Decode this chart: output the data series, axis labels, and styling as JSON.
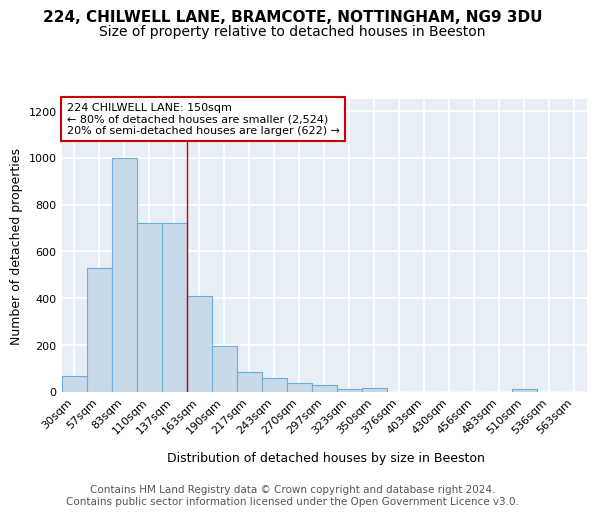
{
  "title_line1": "224, CHILWELL LANE, BRAMCOTE, NOTTINGHAM, NG9 3DU",
  "title_line2": "Size of property relative to detached houses in Beeston",
  "xlabel": "Distribution of detached houses by size in Beeston",
  "ylabel": "Number of detached properties",
  "categories": [
    "30sqm",
    "57sqm",
    "83sqm",
    "110sqm",
    "137sqm",
    "163sqm",
    "190sqm",
    "217sqm",
    "243sqm",
    "270sqm",
    "297sqm",
    "323sqm",
    "350sqm",
    "376sqm",
    "403sqm",
    "430sqm",
    "456sqm",
    "483sqm",
    "510sqm",
    "536sqm",
    "563sqm"
  ],
  "values": [
    68,
    530,
    1000,
    720,
    720,
    410,
    197,
    87,
    60,
    40,
    30,
    14,
    18,
    0,
    0,
    0,
    0,
    0,
    12,
    0,
    0
  ],
  "bar_color": "#c8d9ea",
  "bar_edge_color": "#6baed6",
  "vline_color": "#cc0000",
  "vline_pos": 4.5,
  "annotation_text": "224 CHILWELL LANE: 150sqm\n← 80% of detached houses are smaller (2,524)\n20% of semi-detached houses are larger (622) →",
  "annotation_box_facecolor": "#ffffff",
  "annotation_box_edgecolor": "#cc0000",
  "ylim": [
    0,
    1250
  ],
  "yticks": [
    0,
    200,
    400,
    600,
    800,
    1000,
    1200
  ],
  "plot_bg_color": "#e8eef5",
  "fig_bg_color": "#ffffff",
  "grid_color": "#ffffff",
  "title_fontsize": 11,
  "subtitle_fontsize": 10,
  "axis_label_fontsize": 9,
  "tick_fontsize": 8,
  "annot_fontsize": 8,
  "footer_fontsize": 7.5,
  "footer_text": "Contains HM Land Registry data © Crown copyright and database right 2024.\nContains public sector information licensed under the Open Government Licence v3.0."
}
